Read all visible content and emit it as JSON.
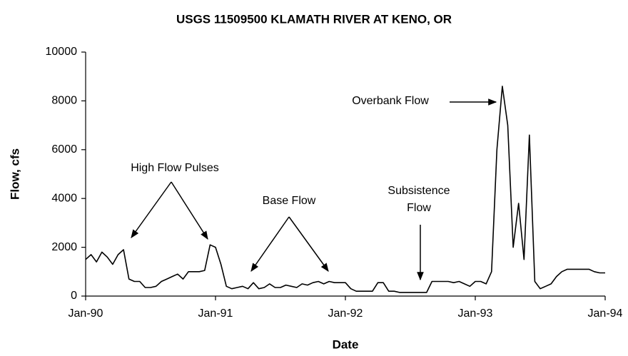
{
  "chart_data": {
    "type": "line",
    "title": "USGS 11509500 KLAMATH RIVER AT KENO, OR",
    "xlabel": "Date",
    "ylabel": "Flow, cfs",
    "categories": [
      "Jan-90",
      null,
      null,
      null,
      null,
      null,
      null,
      null,
      null,
      null,
      null,
      null,
      null,
      null,
      null,
      null,
      null,
      null,
      null,
      null,
      null,
      null,
      null,
      null,
      "Jan-91",
      null,
      null,
      null,
      null,
      null,
      null,
      null,
      null,
      null,
      null,
      null,
      null,
      null,
      null,
      null,
      null,
      null,
      null,
      null,
      null,
      null,
      null,
      null,
      "Jan-92",
      null,
      null,
      null,
      null,
      null,
      null,
      null,
      null,
      null,
      null,
      null,
      null,
      null,
      null,
      null,
      null,
      null,
      null,
      null,
      null,
      null,
      null,
      null,
      "Jan-93",
      null,
      null,
      null,
      null,
      null,
      null,
      null,
      null,
      null,
      null,
      null,
      null,
      null,
      null,
      null,
      null,
      null,
      null,
      null,
      null,
      null,
      null,
      null,
      "Jan-94"
    ],
    "series": [
      {
        "name": "Flow",
        "color": "#000000",
        "values": [
          1500,
          1700,
          1400,
          1800,
          1600,
          1300,
          1700,
          1900,
          700,
          600,
          600,
          350,
          350,
          400,
          600,
          700,
          800,
          900,
          700,
          1000,
          1000,
          1000,
          1050,
          2100,
          2000,
          1300,
          400,
          300,
          350,
          400,
          300,
          550,
          300,
          350,
          500,
          350,
          350,
          450,
          400,
          350,
          500,
          450,
          550,
          600,
          500,
          600,
          550,
          550,
          550,
          300,
          200,
          200,
          200,
          200,
          550,
          550,
          200,
          200,
          150,
          150,
          150,
          150,
          150,
          150,
          600,
          600,
          600,
          600,
          550,
          600,
          500,
          400,
          600,
          600,
          500,
          1000,
          6000,
          8600,
          7000,
          2000,
          3800,
          1500,
          6600,
          600,
          300,
          400,
          500,
          800,
          1000,
          1100,
          1100,
          1100,
          1100,
          1100,
          1000,
          950,
          950
        ]
      }
    ],
    "ylim": [
      0,
      10000
    ],
    "yticks": [
      0,
      2000,
      4000,
      6000,
      8000,
      10000
    ],
    "grid": false,
    "annotations": [
      "High Flow  Pulses",
      "Base Flow",
      "Subsistence",
      "Flow",
      "Overbank Flow"
    ]
  }
}
